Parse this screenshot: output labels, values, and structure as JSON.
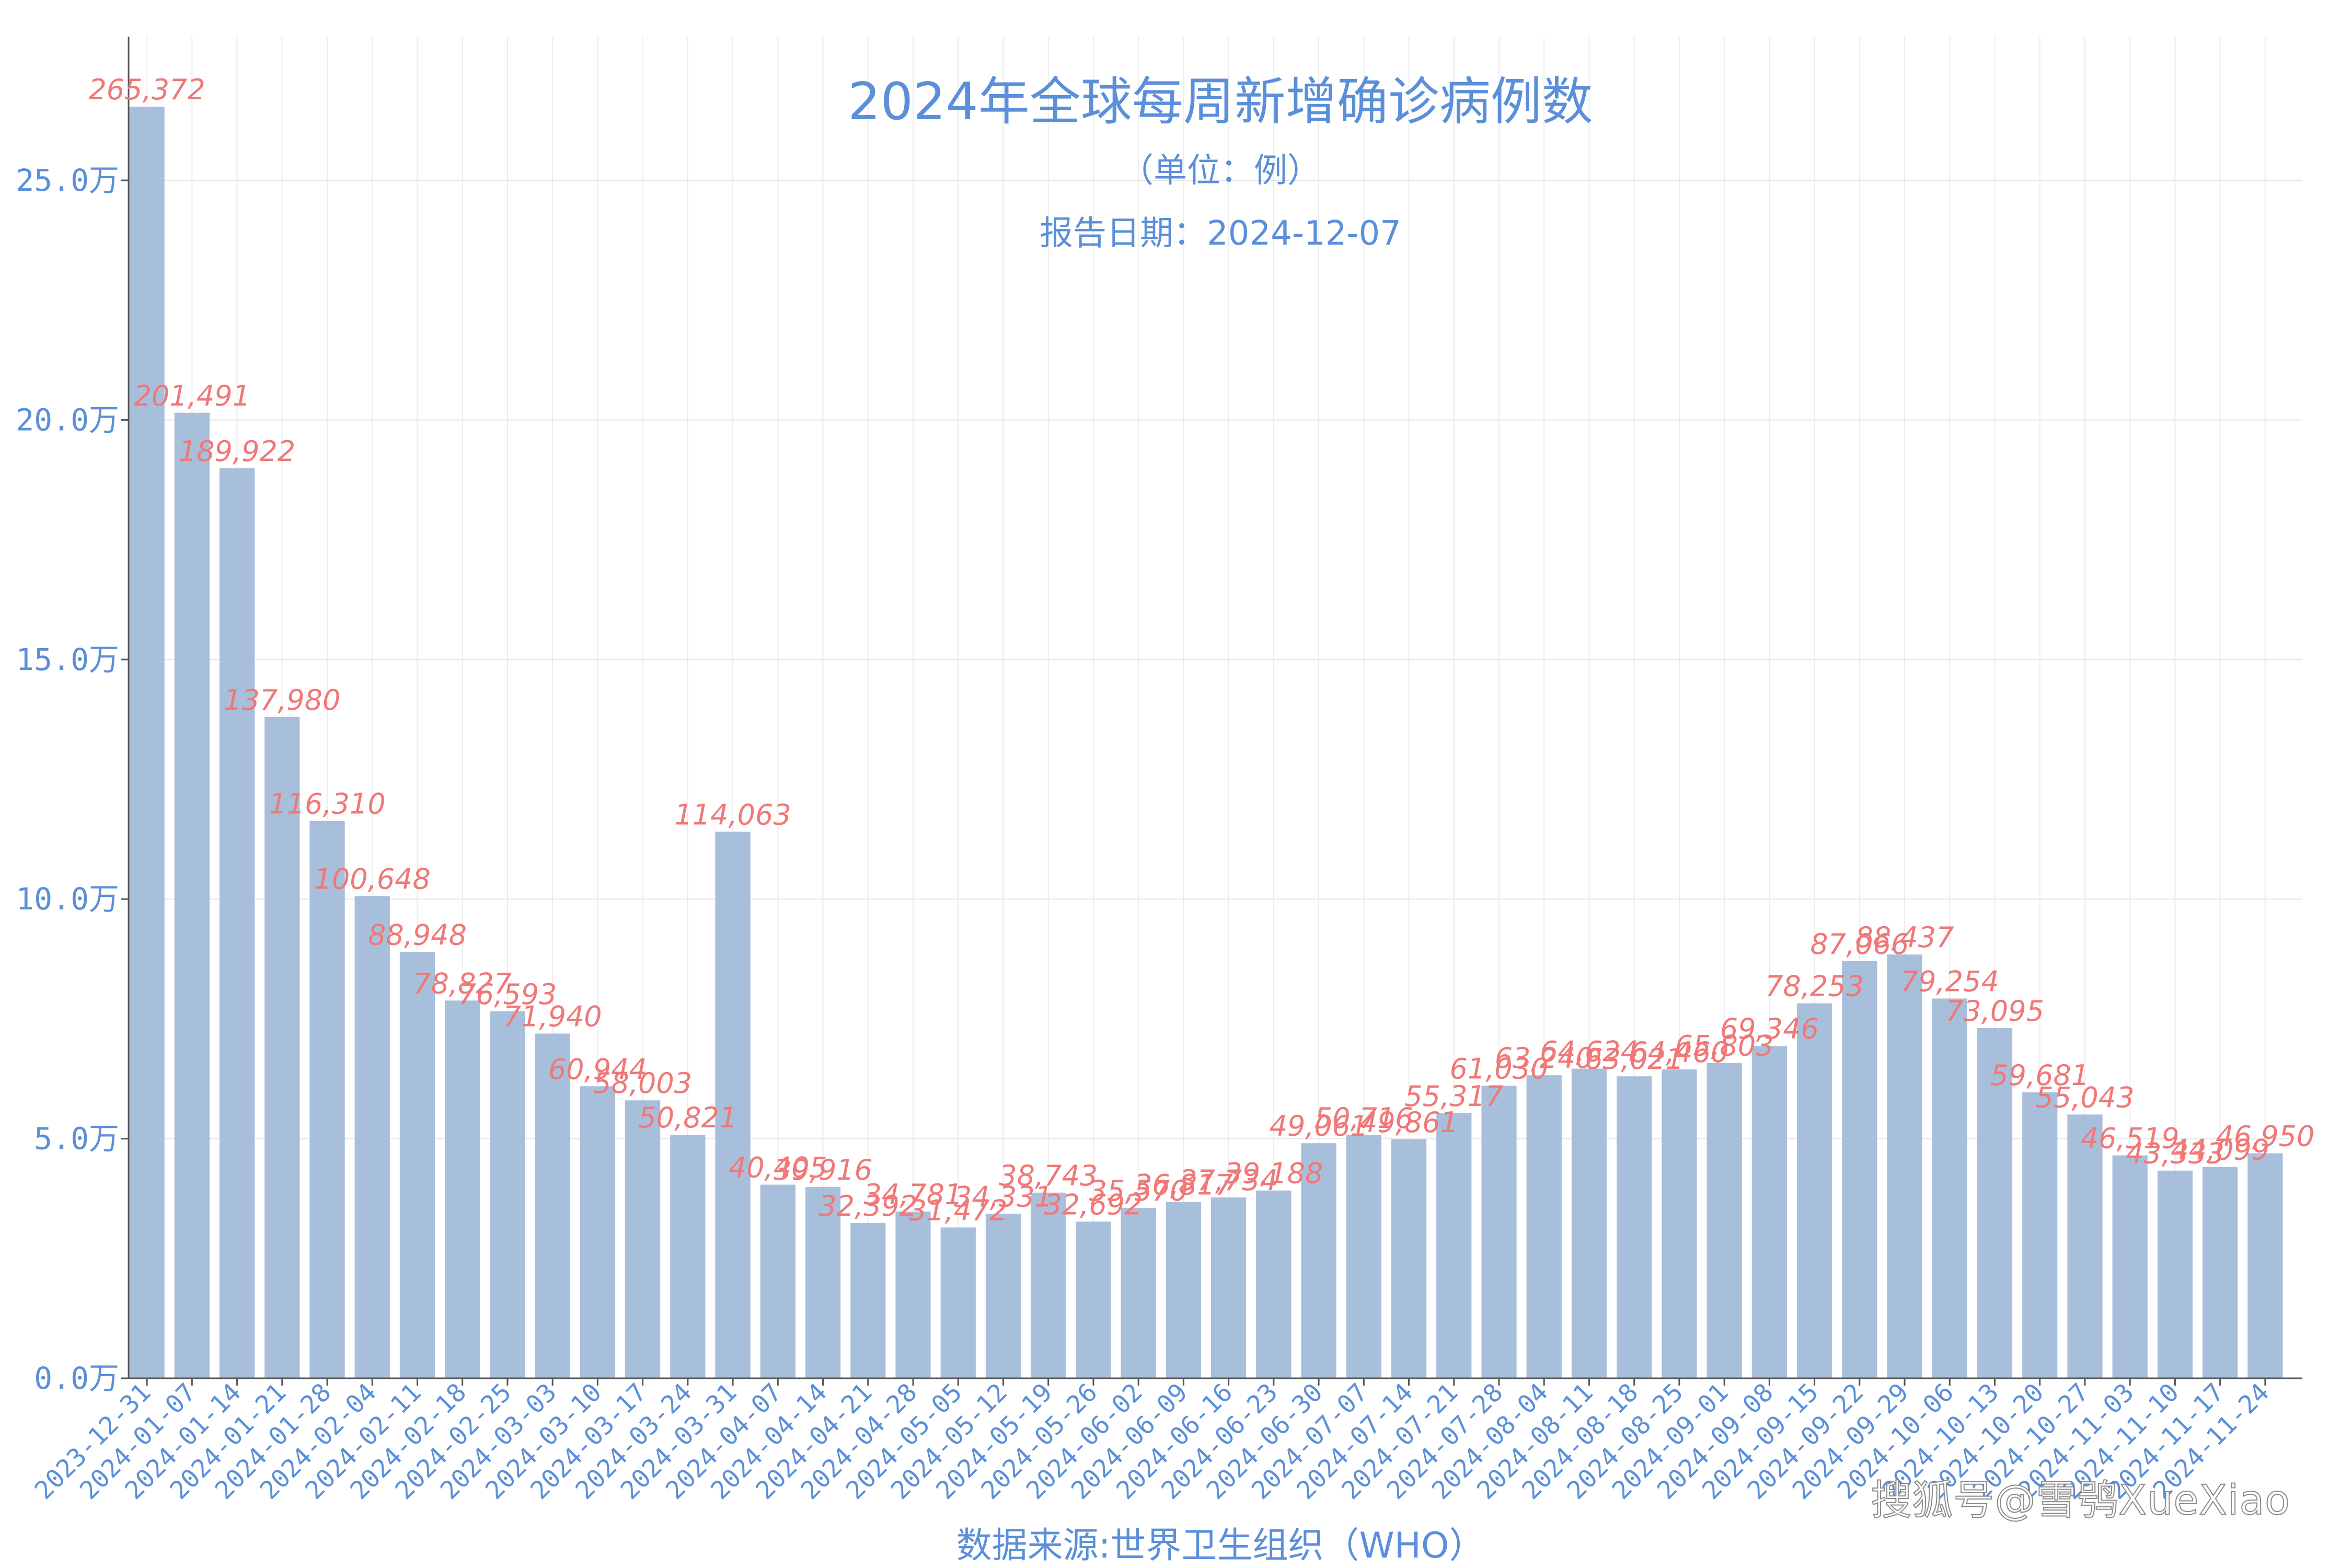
{
  "chart_data": {
    "type": "bar",
    "title": "2024年全球每周新增确诊病例数",
    "subtitle": "（单位：例）",
    "report_date": "报告日期：2024-12-07",
    "xlabel": "数据来源:世界卫生组织（WHO）",
    "ylabel": "",
    "ylim": [
      0,
      280000
    ],
    "yticks": [
      0,
      50000,
      100000,
      150000,
      200000,
      250000
    ],
    "ytick_labels": [
      "0.0万",
      "5.0万",
      "10.0万",
      "15.0万",
      "20.0万",
      "25.0万"
    ],
    "grid": true,
    "bar_color": "#a8bfdc",
    "label_color": "#f07878",
    "axis_text_color": "#5b8fd9",
    "categories": [
      "2023-12-31",
      "2024-01-07",
      "2024-01-14",
      "2024-01-21",
      "2024-01-28",
      "2024-02-04",
      "2024-02-11",
      "2024-02-18",
      "2024-02-25",
      "2024-03-03",
      "2024-03-10",
      "2024-03-17",
      "2024-03-24",
      "2024-03-31",
      "2024-04-07",
      "2024-04-14",
      "2024-04-21",
      "2024-04-28",
      "2024-05-05",
      "2024-05-12",
      "2024-05-19",
      "2024-05-26",
      "2024-06-02",
      "2024-06-09",
      "2024-06-16",
      "2024-06-23",
      "2024-06-30",
      "2024-07-07",
      "2024-07-14",
      "2024-07-21",
      "2024-07-28",
      "2024-08-04",
      "2024-08-11",
      "2024-08-18",
      "2024-08-25",
      "2024-09-01",
      "2024-09-08",
      "2024-09-15",
      "2024-09-22",
      "2024-09-29",
      "2024-10-06",
      "2024-10-13",
      "2024-10-20",
      "2024-10-27",
      "2024-11-03",
      "2024-11-10",
      "2024-11-17",
      "2024-11-24"
    ],
    "values": [
      265372,
      201491,
      189922,
      137980,
      116310,
      100648,
      88948,
      78827,
      76593,
      71940,
      60944,
      58003,
      50821,
      114063,
      40405,
      39916,
      32392,
      34781,
      31472,
      34331,
      38743,
      32692,
      35570,
      36817,
      37734,
      39188,
      49061,
      50716,
      49861,
      55317,
      61030,
      63240,
      64624,
      63021,
      64460,
      65803,
      69346,
      78253,
      87066,
      88437,
      79254,
      73095,
      59681,
      55043,
      46519,
      43333,
      44099,
      46950
    ],
    "value_labels": [
      "265,372",
      "201,491",
      "189,922",
      "137,980",
      "116,310",
      "100,648",
      "88,948",
      "78,827",
      "76,593",
      "71,940",
      "60,944",
      "58,003",
      "50,821",
      "114,063",
      "40,405",
      "39,916",
      "32,392",
      "34,781",
      "31,472",
      "34,331",
      "38,743",
      "32,692",
      "35,570",
      "36,817",
      "37,734",
      "39,188",
      "49,061",
      "50,716",
      "49,861",
      "55,317",
      "61,030",
      "63,240",
      "64,624",
      "63,021",
      "64,460",
      "65,803",
      "69,346",
      "78,253",
      "87,066",
      "88,437",
      "79,254",
      "73,095",
      "59,681",
      "55,043",
      "46,519",
      "43,333",
      "44,099",
      "46,950"
    ]
  },
  "watermark": "搜狐号@雪鸮XueXiao"
}
